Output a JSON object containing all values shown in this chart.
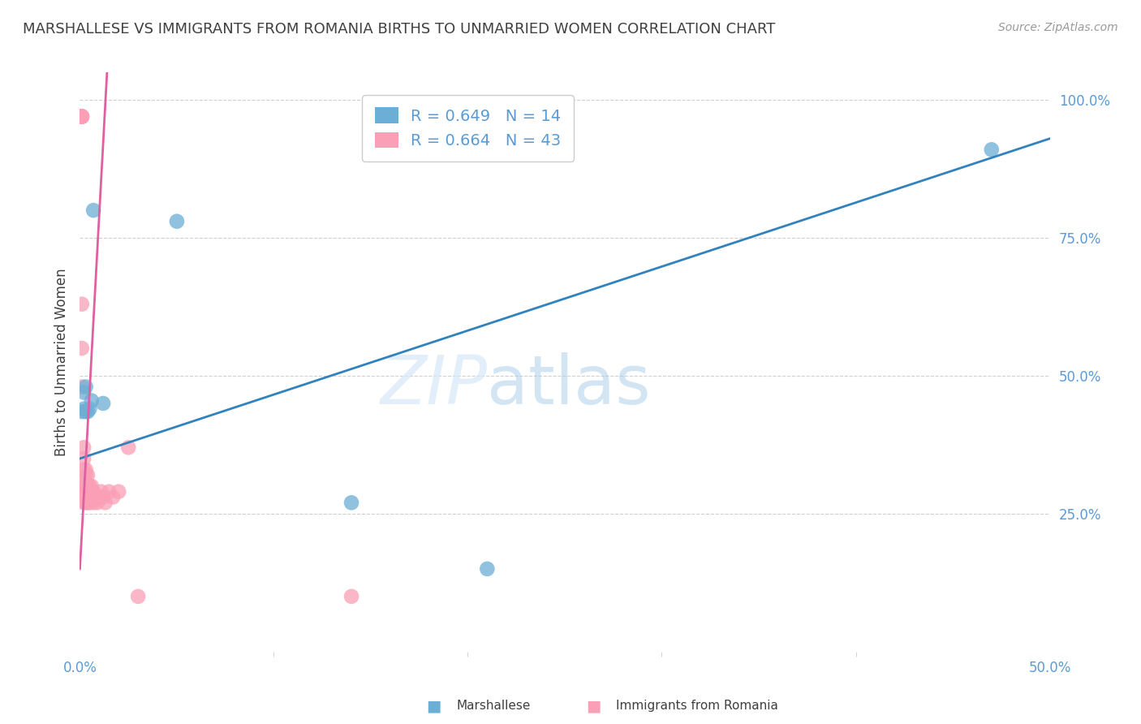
{
  "title": "MARSHALLESE VS IMMIGRANTS FROM ROMANIA BIRTHS TO UNMARRIED WOMEN CORRELATION CHART",
  "source": "Source: ZipAtlas.com",
  "ylabel": "Births to Unmarried Women",
  "xlim": [
    0.0,
    0.5
  ],
  "ylim": [
    0.0,
    1.05
  ],
  "yticks_right": [
    0.25,
    0.5,
    0.75,
    1.0
  ],
  "ytick_labels_right": [
    "25.0%",
    "50.0%",
    "75.0%",
    "100.0%"
  ],
  "xticks": [
    0.0,
    0.5
  ],
  "xtick_labels": [
    "0.0%",
    "50.0%"
  ],
  "xticks_minor": [
    0.1,
    0.2,
    0.3,
    0.4
  ],
  "blue_color": "#6baed6",
  "pink_color": "#fa9fb5",
  "blue_line_color": "#3182bd",
  "pink_line_color": "#e05fa0",
  "watermark_zip": "ZIP",
  "watermark_atlas": "atlas",
  "legend_r_blue": "R = 0.649",
  "legend_n_blue": "N = 14",
  "legend_r_pink": "R = 0.664",
  "legend_n_pink": "N = 43",
  "blue_x": [
    0.001,
    0.002,
    0.002,
    0.003,
    0.003,
    0.004,
    0.005,
    0.006,
    0.007,
    0.012,
    0.05,
    0.14,
    0.21,
    0.47
  ],
  "blue_y": [
    0.435,
    0.44,
    0.47,
    0.435,
    0.48,
    0.435,
    0.44,
    0.455,
    0.8,
    0.45,
    0.78,
    0.27,
    0.15,
    0.91
  ],
  "pink_x": [
    0.001,
    0.001,
    0.001,
    0.001,
    0.001,
    0.001,
    0.001,
    0.001,
    0.001,
    0.001,
    0.002,
    0.002,
    0.002,
    0.002,
    0.002,
    0.002,
    0.002,
    0.003,
    0.003,
    0.003,
    0.003,
    0.003,
    0.004,
    0.004,
    0.004,
    0.005,
    0.005,
    0.006,
    0.006,
    0.007,
    0.007,
    0.008,
    0.009,
    0.01,
    0.011,
    0.012,
    0.013,
    0.015,
    0.017,
    0.02,
    0.025,
    0.03,
    0.14
  ],
  "pink_y": [
    0.97,
    0.97,
    0.97,
    0.97,
    0.97,
    0.97,
    0.97,
    0.63,
    0.55,
    0.48,
    0.37,
    0.35,
    0.33,
    0.31,
    0.3,
    0.28,
    0.27,
    0.33,
    0.32,
    0.3,
    0.29,
    0.27,
    0.32,
    0.3,
    0.27,
    0.3,
    0.27,
    0.3,
    0.28,
    0.29,
    0.27,
    0.28,
    0.27,
    0.28,
    0.29,
    0.28,
    0.27,
    0.29,
    0.28,
    0.29,
    0.37,
    0.1,
    0.1
  ],
  "blue_line_x": [
    0.0,
    0.5
  ],
  "blue_line_y": [
    0.35,
    0.93
  ],
  "pink_line_x": [
    0.0,
    0.014
  ],
  "pink_line_y": [
    0.15,
    1.05
  ],
  "grid_color": "#d0d0d0",
  "background_color": "#ffffff",
  "title_color": "#404040",
  "axis_color": "#5b9bd5",
  "label_color": "#404040"
}
